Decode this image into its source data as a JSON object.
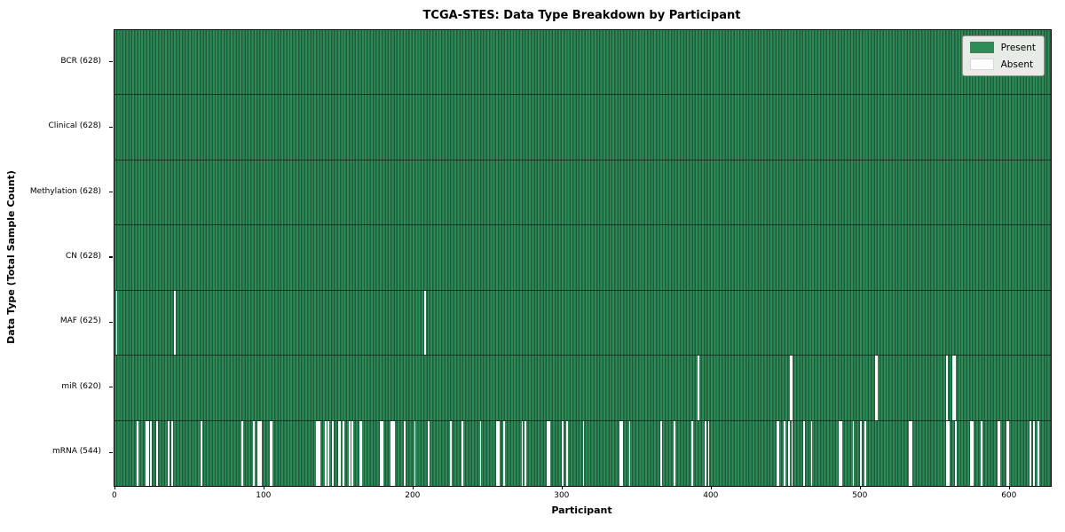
{
  "title": "TCGA-STES: Data Type Breakdown by Participant",
  "chart_data": {
    "type": "heatmap",
    "title": "TCGA-STES: Data Type Breakdown by Participant",
    "xlabel": "Participant",
    "ylabel": "Data Type (Total Sample Count)",
    "x_ticks": [
      0,
      100,
      200,
      300,
      400,
      500,
      600
    ],
    "n_participants": 628,
    "axis_note": "7 rows, each cell = one participant; green = data present, white = absent",
    "colors": {
      "present": "#2e8b57",
      "present_dark_stripe": "#1f5c3b",
      "absent": "#ffffff",
      "row_separator": "rgba(0,0,0,0.55)"
    },
    "legend": [
      {
        "label": "Present",
        "color": "#2e8b57"
      },
      {
        "label": "Absent",
        "color": "#ffffff"
      }
    ],
    "rows": [
      {
        "label": "BCR (628)",
        "present_count": 628,
        "absent_participants": []
      },
      {
        "label": "Clinical (628)",
        "present_count": 628,
        "absent_participants": []
      },
      {
        "label": "Methylation (628)",
        "present_count": 628,
        "absent_participants": []
      },
      {
        "label": "CN (628)",
        "present_count": 628,
        "absent_participants": []
      },
      {
        "label": "MAF (625)",
        "present_count": 625,
        "absent_participants": [
          1,
          40,
          208
        ]
      },
      {
        "label": "miR (620)",
        "present_count": 620,
        "absent_participants": [
          391,
          453,
          454,
          510,
          511,
          558,
          562,
          563
        ]
      },
      {
        "label": "mRNA (544)",
        "present_count": 544,
        "absent_participants": [
          15,
          21,
          22,
          24,
          28,
          36,
          38,
          58,
          85,
          93,
          96,
          97,
          98,
          104,
          105,
          135,
          136,
          137,
          141,
          143,
          146,
          150,
          151,
          153,
          157,
          159,
          164,
          165,
          178,
          179,
          185,
          186,
          187,
          194,
          201,
          210,
          225,
          233,
          245,
          256,
          257,
          261,
          273,
          275,
          290,
          291,
          300,
          303,
          314,
          339,
          340,
          345,
          366,
          375,
          387,
          396,
          398,
          444,
          445,
          449,
          452,
          454,
          462,
          467,
          486,
          487,
          495,
          500,
          503,
          533,
          534,
          558,
          559,
          564,
          574,
          575,
          581,
          592,
          593,
          598,
          599,
          614,
          616,
          619
        ]
      }
    ]
  }
}
